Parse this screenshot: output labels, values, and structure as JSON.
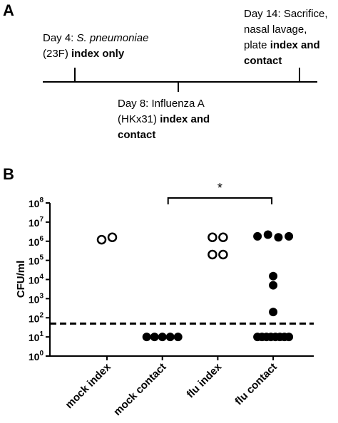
{
  "panel_a": {
    "label": "A",
    "events": [
      {
        "lines": [
          [
            {
              "text": "Day 4: ",
              "style": "normal"
            },
            {
              "text": "S. pneumoniae",
              "style": "italic"
            }
          ],
          [
            {
              "text": "(23F) ",
              "style": "normal"
            },
            {
              "text": "index only",
              "style": "bold"
            }
          ]
        ]
      },
      {
        "lines": [
          [
            {
              "text": "Day 8: Influenza A",
              "style": "normal"
            }
          ],
          [
            {
              "text": "(HKx31) ",
              "style": "normal"
            },
            {
              "text": "index and",
              "style": "bold"
            }
          ],
          [
            {
              "text": "contact",
              "style": "bold"
            }
          ]
        ]
      },
      {
        "lines": [
          [
            {
              "text": "Day 14: Sacrifice,",
              "style": "normal"
            }
          ],
          [
            {
              "text": "nasal lavage,",
              "style": "normal"
            }
          ],
          [
            {
              "text": "plate ",
              "style": "normal"
            },
            {
              "text": "index and",
              "style": "bold"
            }
          ],
          [
            {
              "text": "contact",
              "style": "bold"
            }
          ]
        ]
      }
    ]
  },
  "chart_data": {
    "type": "scatter",
    "panel_label": "B",
    "ylabel": "CFU/ml",
    "categories": [
      "mock index",
      "mock contact",
      "flu index",
      "flu contact"
    ],
    "values": [
      [
        1200000,
        1600000
      ],
      [
        10,
        10,
        10,
        10,
        10
      ],
      [
        1600000,
        1600000,
        200000,
        200000
      ],
      [
        1800000,
        2200000,
        1600000,
        1800000,
        15000,
        5000,
        200,
        10,
        10,
        10,
        10,
        10,
        10,
        10,
        10
      ]
    ],
    "markers": [
      "open",
      "filled",
      "open",
      "filled"
    ],
    "color": "#000000",
    "log_y": true,
    "ylim": [
      1,
      100000000
    ],
    "yticks": [
      {
        "value": 1,
        "label": "10",
        "exponent": "0"
      },
      {
        "value": 10,
        "label": "10",
        "exponent": "1"
      },
      {
        "value": 100,
        "label": "10",
        "exponent": "2"
      },
      {
        "value": 1000,
        "label": "10",
        "exponent": "3"
      },
      {
        "value": 10000,
        "label": "10",
        "exponent": "4"
      },
      {
        "value": 100000,
        "label": "10",
        "exponent": "5"
      },
      {
        "value": 1000000,
        "label": "10",
        "exponent": "6"
      },
      {
        "value": 10000000,
        "label": "10",
        "exponent": "7"
      },
      {
        "value": 100000000,
        "label": "10",
        "exponent": "8"
      }
    ],
    "threshold": {
      "value": 50,
      "style": "dashed"
    },
    "significance": {
      "from": 1,
      "to": 3,
      "label": "*"
    }
  }
}
